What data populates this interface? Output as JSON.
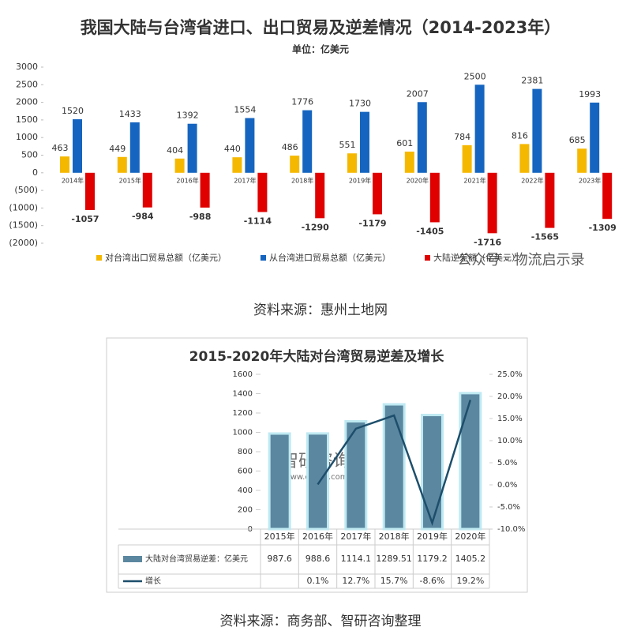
{
  "chart_data": [
    {
      "type": "bar",
      "title": "我国大陆与台湾省进口、出口贸易及逆差情况（2014-2023年）",
      "subtitle": "单位：亿美元",
      "categories": [
        "2014年",
        "2015年",
        "2016年",
        "2017年",
        "2018年",
        "2019年",
        "2020年",
        "2021年",
        "2022年",
        "2023年"
      ],
      "series": [
        {
          "name": "对台湾出口贸易总额（亿美元）",
          "color": "#f5b800",
          "values": [
            463,
            449,
            404,
            440,
            486,
            551,
            601,
            784,
            816,
            685
          ]
        },
        {
          "name": "从台湾进口贸易总额（亿美元）",
          "color": "#1565c0",
          "values": [
            1520,
            1433,
            1392,
            1554,
            1776,
            1730,
            2007,
            2500,
            2381,
            1993
          ]
        },
        {
          "name": "大陆逆差额（亿美元）",
          "color": "#e00000",
          "values": [
            -1057,
            -984,
            -988,
            -1114,
            -1290,
            -1179,
            -1405,
            -1716,
            -1565,
            -1309
          ]
        }
      ],
      "ylim": [
        -2000,
        3000
      ],
      "yticks": [
        3000,
        2500,
        2000,
        1500,
        1000,
        500,
        0,
        {
          "value": -500,
          "label": "(500)"
        },
        {
          "value": -1000,
          "label": "(1000)"
        },
        {
          "value": -1500,
          "label": "(1500)"
        },
        {
          "value": -2000,
          "label": "(2000)"
        }
      ],
      "grid": false,
      "legend": "bottom",
      "watermark": "公众号 · 物流启示录"
    },
    {
      "type": "bar",
      "title": "2015-2020年大陆对台湾贸易逆差及增长",
      "categories": [
        "2015年",
        "2016年",
        "2017年",
        "2018年",
        "2019年",
        "2020年"
      ],
      "series": [
        {
          "name": "大陆对台湾贸易逆差：亿美元",
          "color": "#5b87a0",
          "values": [
            987.6,
            988.6,
            1114.1,
            1289.51,
            1179.2,
            1405.2
          ]
        },
        {
          "name": "增长",
          "type": "line",
          "axis": "y2",
          "color": "#1d4e6b",
          "values": [
            null,
            0.1,
            12.7,
            15.7,
            -8.6,
            19.2
          ],
          "value_labels": [
            null,
            "0.1%",
            "12.7%",
            "15.7%",
            "-8.6%",
            "19.2%"
          ]
        }
      ],
      "ylim": [
        0,
        1600
      ],
      "yticks": [
        0,
        200,
        400,
        600,
        800,
        1000,
        1200,
        1400,
        1600
      ],
      "y2lim": [
        -10,
        25
      ],
      "y2ticks": [
        {
          "value": -10,
          "label": "-10.0%"
        },
        {
          "value": -5,
          "label": "-5.0%"
        },
        {
          "value": 0,
          "label": "0.0%"
        },
        {
          "value": 5,
          "label": "5.0%"
        },
        {
          "value": 10,
          "label": "10.0%"
        },
        {
          "value": 15,
          "label": "15.0%"
        },
        {
          "value": 20,
          "label": "20.0%"
        },
        {
          "value": 25,
          "label": "25.0%"
        }
      ],
      "grid": false,
      "legend": "table",
      "watermark": [
        "智研咨询",
        "www.chyxx.com"
      ]
    }
  ],
  "captions": [
    "资料来源：惠州土地网",
    "资料来源：商务部、智研咨询整理"
  ]
}
